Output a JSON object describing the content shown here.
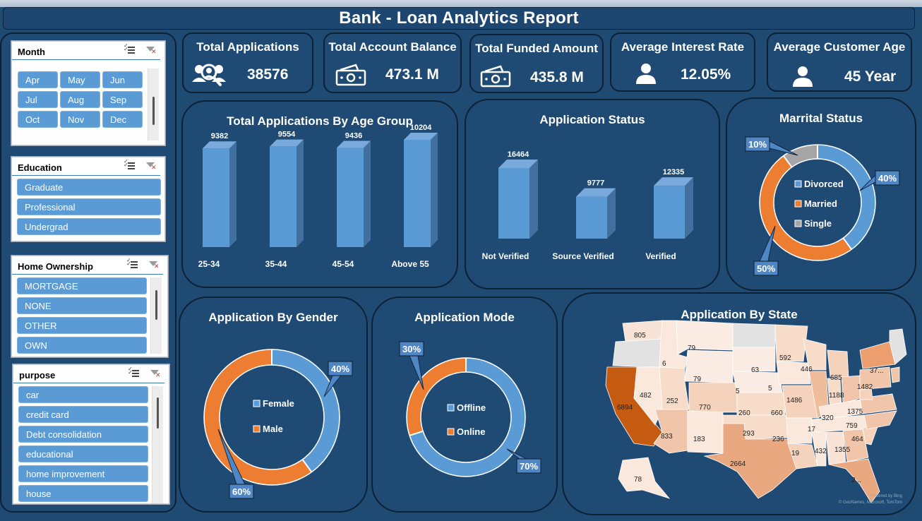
{
  "title": "Bank -  Loan Analytics Report",
  "slicers": {
    "month": {
      "title": "Month",
      "items": [
        "Apr",
        "May",
        "Jun",
        "Jul",
        "Aug",
        "Sep",
        "Oct",
        "Nov",
        "Dec"
      ]
    },
    "education": {
      "title": "Education",
      "items": [
        "Graduate",
        "Professional",
        "Undergrad"
      ]
    },
    "home_ownership": {
      "title": "Home Ownership",
      "items": [
        "MORTGAGE",
        "NONE",
        "OTHER",
        "OWN"
      ]
    },
    "purpose": {
      "title": "purpose",
      "items": [
        "car",
        "credit card",
        "Debt consolidation",
        "educational",
        "home improvement",
        "house"
      ]
    }
  },
  "kpis": {
    "total_applications": {
      "label": "Total Applications",
      "value": "38576",
      "icon": "people-search-icon"
    },
    "total_account_balance": {
      "label": "Total Account Balance",
      "value": "473.1 M",
      "icon": "cash-icon"
    },
    "total_funded_amount": {
      "label": "Total Funded Amount",
      "value": "435.8 M",
      "icon": "cash-icon"
    },
    "average_interest_rate": {
      "label": "Average Interest Rate",
      "value": "12.05%",
      "icon": "person-icon"
    },
    "average_customer_age": {
      "label": "Average Customer Age",
      "value": "45  Year",
      "icon": "person-icon"
    }
  },
  "colors": {
    "background": "#1f4a72",
    "bar": "#5b9bd5",
    "blue_segment": "#5b9bd5",
    "orange_segment": "#ed7d31",
    "gray_segment": "#a5a5a5",
    "slicer_item": "#5b9bd5"
  },
  "chart_data": [
    {
      "id": "age_group",
      "type": "bar",
      "title": "Total Applications By Age Group",
      "categories": [
        "25-34",
        "35-44",
        "45-54",
        "Above 55"
      ],
      "values": [
        9382,
        9554,
        9436,
        10204
      ],
      "ylim": [
        0,
        10204
      ]
    },
    {
      "id": "application_status",
      "type": "bar",
      "title": "Application Status",
      "categories": [
        "Not Verified",
        "Source Verified",
        "Verified"
      ],
      "values": [
        16464,
        9777,
        12335
      ],
      "ylim": [
        0,
        16464
      ]
    },
    {
      "id": "marital_status",
      "type": "pie",
      "title": "Marrital  Status",
      "categories": [
        "Divorced",
        "Married",
        "Single"
      ],
      "values": [
        40,
        50,
        10
      ],
      "labels": [
        "40%",
        "50%",
        "10%"
      ],
      "legend": "center"
    },
    {
      "id": "gender",
      "type": "pie",
      "title": "Application By Gender",
      "categories": [
        "Female",
        "Male"
      ],
      "values": [
        40,
        60
      ],
      "labels": [
        "40%",
        "60%"
      ],
      "legend": "center"
    },
    {
      "id": "mode",
      "type": "pie",
      "title": "Application Mode",
      "categories": [
        "Offline",
        "Online"
      ],
      "values": [
        70,
        30
      ],
      "labels": [
        "70%",
        "30%"
      ],
      "legend": "center"
    }
  ],
  "map": {
    "title": "Application By State",
    "values": [
      "805",
      "79",
      "6",
      "63",
      "592",
      "446",
      "79",
      "685",
      "37...",
      "482",
      "252",
      "770",
      "5",
      "5",
      "1188",
      "1482",
      "6894",
      "260",
      "660",
      "1486",
      "320",
      "1375",
      "833",
      "183",
      "293",
      "236",
      "17",
      "759",
      "464",
      "1355",
      "432",
      "19",
      "2664",
      "2...",
      "78"
    ],
    "credit": "Powered by Bing",
    "credit2": "© GeoNames, Microsoft, TomTom"
  }
}
